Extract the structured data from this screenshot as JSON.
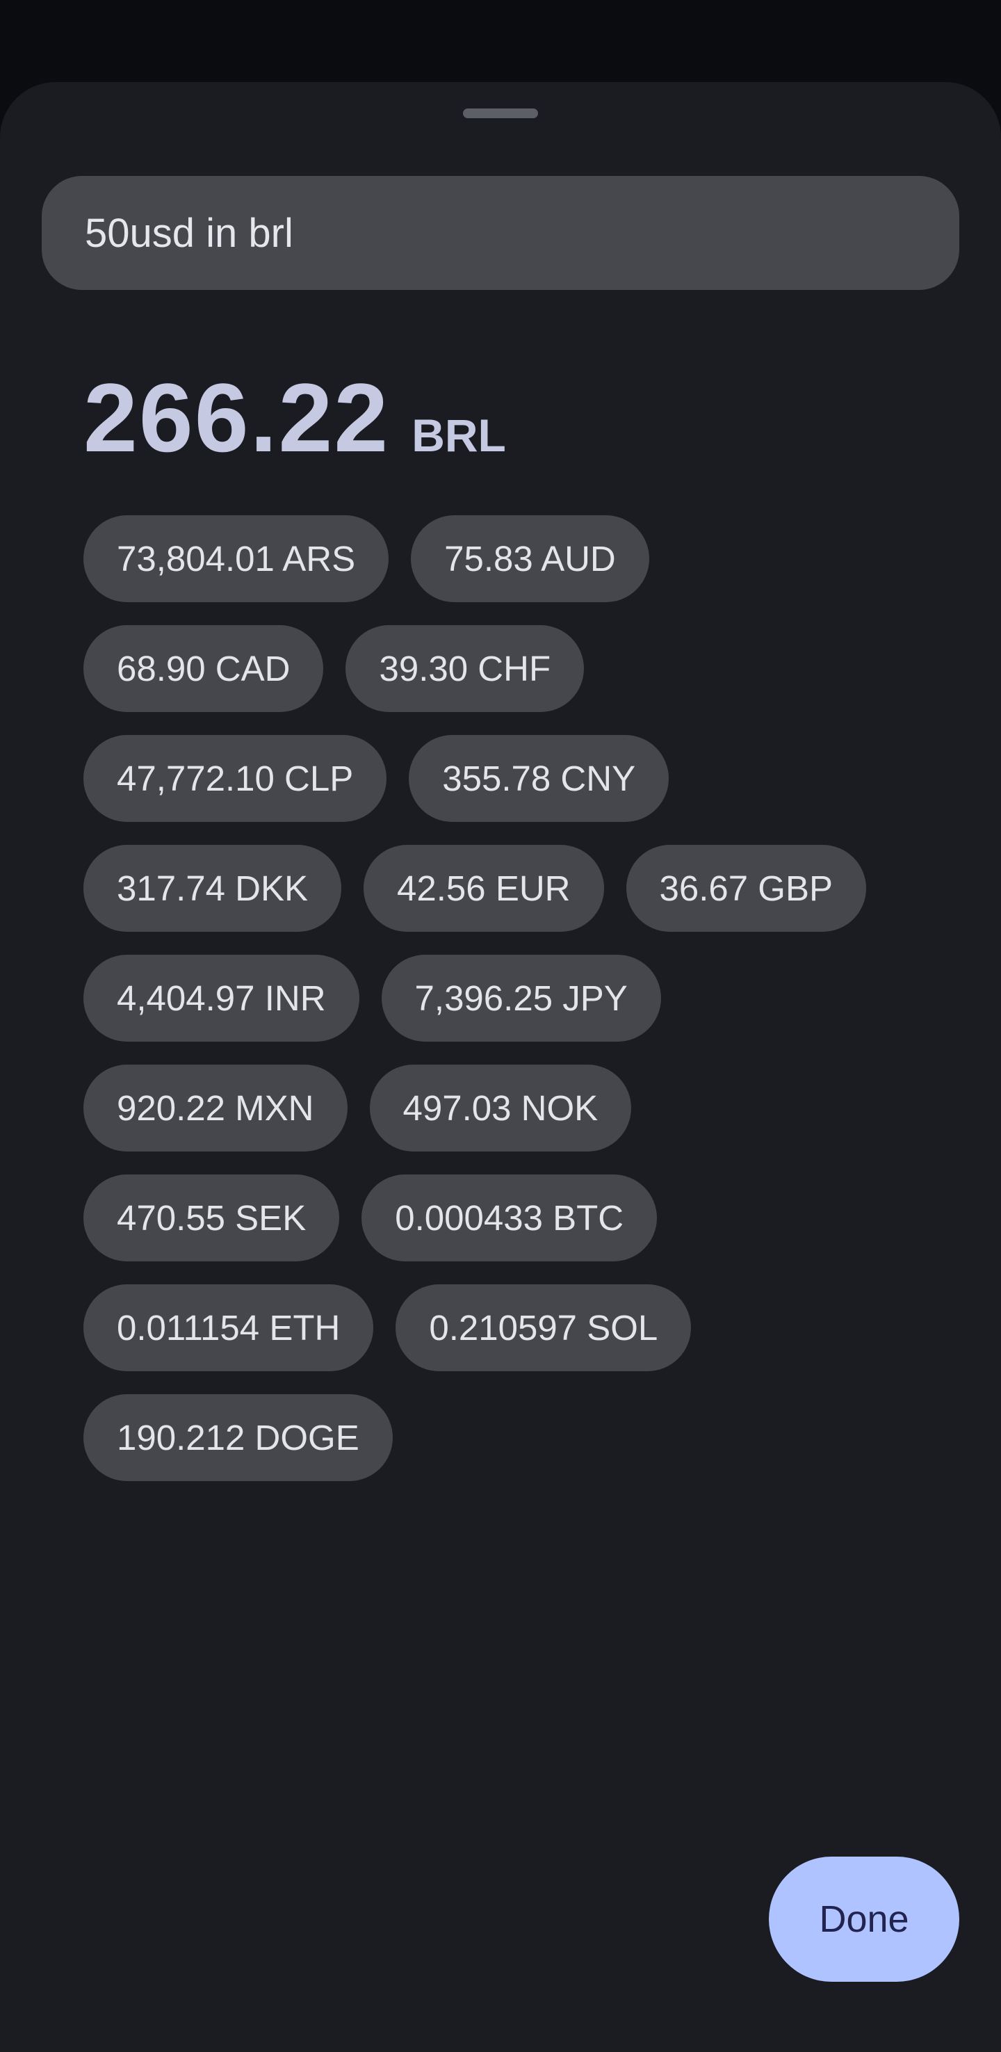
{
  "query": {
    "value": "50usd in brl",
    "placeholder": ""
  },
  "result": {
    "value": "266.22",
    "unit": "BRL"
  },
  "conversions": [
    [
      "73,804.01 ARS",
      "75.83 AUD"
    ],
    [
      "68.90 CAD",
      "39.30 CHF"
    ],
    [
      "47,772.10 CLP",
      "355.78 CNY"
    ],
    [
      "317.74 DKK",
      "42.56 EUR",
      "36.67 GBP"
    ],
    [
      "4,404.97 INR",
      "7,396.25 JPY"
    ],
    [
      "920.22 MXN",
      "497.03 NOK"
    ],
    [
      "470.55 SEK",
      "0.000433 BTC"
    ],
    [
      "0.011154 ETH",
      "0.210597 SOL"
    ],
    [
      "190.212 DOGE"
    ]
  ],
  "actions": {
    "done_label": "Done"
  },
  "colors": {
    "sheet_background": "#1a1c22",
    "chip_background": "#45474c",
    "accent": "#aec3ff",
    "result_text": "#c6c9e2"
  }
}
